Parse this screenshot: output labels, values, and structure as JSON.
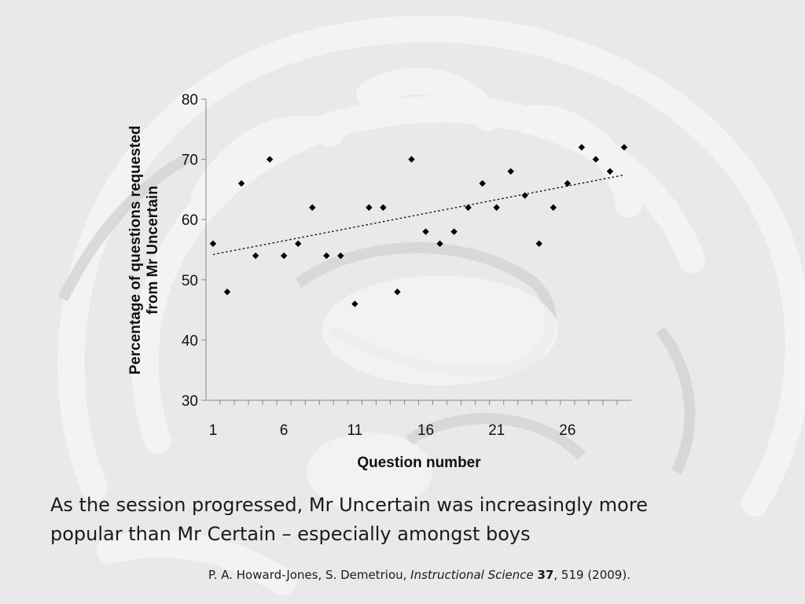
{
  "background": {
    "description_icon": "brain-mri-sagittal-icon",
    "tone": "#e9e9e9"
  },
  "chart_data": {
    "type": "scatter",
    "title": "",
    "xlabel": "Question number",
    "ylabel_lines": [
      "Percentage of questions requested",
      "from Mr Uncertain"
    ],
    "x_ticks": [
      1,
      6,
      11,
      16,
      21,
      26
    ],
    "y_ticks": [
      30,
      40,
      50,
      60,
      70,
      80
    ],
    "xlim": [
      0.5,
      30.5
    ],
    "ylim": [
      30,
      80
    ],
    "grid": false,
    "legend": "none",
    "trendline": {
      "type": "linear",
      "style": "dotted",
      "start": [
        1,
        54.2
      ],
      "end": [
        30,
        67.4
      ]
    },
    "series": [
      {
        "x": [
          1,
          2,
          3,
          4,
          5,
          6,
          7,
          8,
          9,
          10,
          11,
          12,
          13,
          14,
          15,
          16,
          17,
          18,
          19,
          20,
          21,
          22,
          23,
          24,
          25,
          26,
          27,
          28,
          29,
          30
        ],
        "y": [
          56,
          48,
          66,
          54,
          70,
          54,
          56,
          62,
          54,
          54,
          46,
          62,
          62,
          48,
          70,
          58,
          56,
          58,
          62,
          66,
          62,
          68,
          64,
          56,
          62,
          66,
          72,
          70,
          68,
          72
        ]
      }
    ]
  },
  "caption": {
    "line1": "As the session progressed, Mr Uncertain was increasingly more",
    "line2": "popular than Mr Certain – especially amongst boys"
  },
  "citation": {
    "authors": "P. A. Howard-Jones, S. Demetriou, ",
    "journal": "Instructional Science",
    "volume": "37",
    "rest": ", 519 (2009)."
  }
}
